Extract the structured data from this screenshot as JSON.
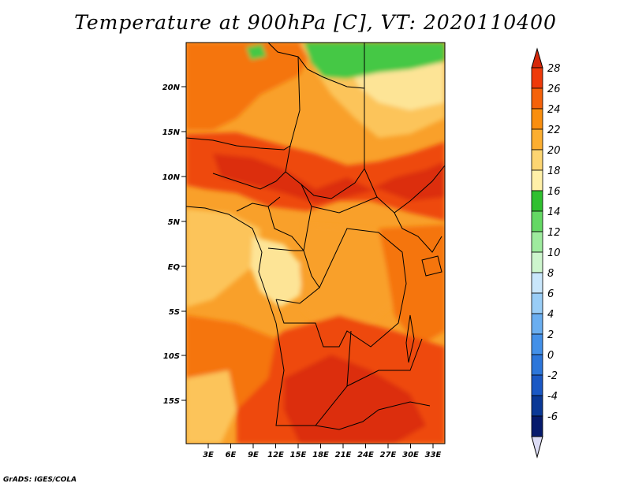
{
  "title": "Temperature at 900hPa [C], VT: 2020110400",
  "credit": "GrADS: IGES/COLA",
  "lat_labels": [
    "20N",
    "15N",
    "10N",
    "5N",
    "EQ",
    "5S",
    "10S",
    "15S"
  ],
  "lon_labels": [
    "3E",
    "6E",
    "9E",
    "12E",
    "15E",
    "18E",
    "21E",
    "24E",
    "27E",
    "30E",
    "33E"
  ],
  "colorbar": {
    "labels": [
      "28",
      "26",
      "24",
      "22",
      "20",
      "18",
      "16",
      "14",
      "12",
      "10",
      "8",
      "6",
      "4",
      "2",
      "0",
      "-2",
      "-4",
      "-6"
    ],
    "colors": [
      "#ee3a0a",
      "#f5620a",
      "#f98e0e",
      "#fcae30",
      "#fdd572",
      "#fff0a8",
      "#30c030",
      "#64d864",
      "#9eeb9e",
      "#cdf5cd",
      "#c9e6fb",
      "#99cdf6",
      "#6aaef0",
      "#4390e8",
      "#2c76da",
      "#1a58c4",
      "#0a3896",
      "#061a6c"
    ],
    "top_color": "#d5280a",
    "bottom_color": "#dcdcf5"
  },
  "color_keys": {
    "t28": "#dc2e08",
    "t26": "#ee4a0c",
    "t24": "#f5740e",
    "t22": "#f9a02a",
    "t20": "#fcc45a",
    "t18": "#fde496",
    "t16": "#fff3b8",
    "t14": "#44c844",
    "t12": "#7ee07e"
  }
}
